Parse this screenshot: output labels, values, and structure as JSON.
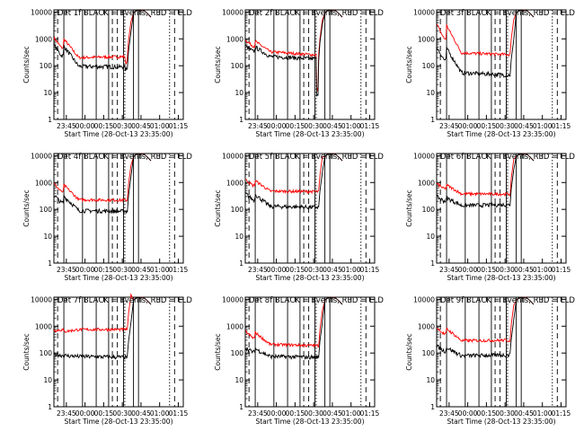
{
  "chart_data": {
    "type": "line",
    "common": {
      "ylabel": "Counts/sec",
      "xlabel_prefix": "Start Time (",
      "xlabel_date": "28-Oct-13 23:35:00",
      "xlabel_suffix": ")",
      "x_unit": "minutes since 23:35:00",
      "xlim": [
        0,
        104
      ],
      "ylim": [
        1,
        12000
      ],
      "yscale": "log",
      "yticks": [
        1,
        10,
        100,
        1000,
        10000
      ],
      "ytick_labels": [
        "1",
        "10",
        "100",
        "1000",
        "10000"
      ],
      "xticks": [
        10,
        25,
        40,
        55,
        70,
        85,
        100
      ],
      "xtick_labels": [
        "23:45",
        "00:00",
        "00:15",
        "00:30",
        "00:45",
        "01:00",
        "01:15"
      ],
      "dashed_lines": [
        3,
        47,
        51,
        97
      ],
      "solid_lines": [
        8,
        23,
        34,
        44,
        56,
        64,
        68
      ],
      "dotted_lines": [
        57,
        93
      ],
      "colors": {
        "events": "#000000",
        "lld": "#ff0000",
        "axes": "#000000"
      }
    },
    "panels": [
      {
        "title_prefix": "Det 1f",
        "title_black": "BLACK = Events,",
        "title_red": "RED = LLD",
        "black": {
          "start": 600,
          "mid": 95,
          "end": 90,
          "drop": 0.8
        },
        "red": {
          "start": 1100,
          "mid": 200,
          "end": 220,
          "drop": 0.6
        }
      },
      {
        "title_prefix": "Det 2f",
        "title_black": "BLACK = Events,",
        "title_red": "RED = LLD",
        "black": {
          "start": 550,
          "mid": 220,
          "end": 180,
          "drop": 0.05
        },
        "red": {
          "start": 900,
          "mid": 330,
          "end": 250,
          "drop": 0.05
        }
      },
      {
        "title_prefix": "Det 3f",
        "title_black": "BLACK = Events,",
        "title_red": "RED = LLD",
        "black": {
          "start": 500,
          "mid": 55,
          "end": 45,
          "drop": 0.0
        },
        "red": {
          "start": 3500,
          "mid": 300,
          "end": 260,
          "drop": 0.0
        }
      },
      {
        "title_prefix": "Det 4f",
        "title_black": "BLACK = Events,",
        "title_red": "RED = LLD",
        "black": {
          "start": 350,
          "mid": 90,
          "end": 85,
          "drop": 0.0
        },
        "red": {
          "start": 900,
          "mid": 230,
          "end": 220,
          "drop": 0.0
        }
      },
      {
        "title_prefix": "Det 5f",
        "title_black": "BLACK = Events,",
        "title_red": "RED = LLD",
        "black": {
          "start": 400,
          "mid": 130,
          "end": 120,
          "drop": 0.0
        },
        "red": {
          "start": 1300,
          "mid": 480,
          "end": 460,
          "drop": 0.0
        }
      },
      {
        "title_prefix": "Det 6f",
        "title_black": "BLACK = Events,",
        "title_red": "RED = LLD",
        "black": {
          "start": 300,
          "mid": 140,
          "end": 150,
          "drop": 0.0
        },
        "red": {
          "start": 900,
          "mid": 380,
          "end": 370,
          "drop": 0.0
        }
      },
      {
        "title_prefix": "Det 7f",
        "title_black": "BLACK = Events,",
        "title_red": "RED = LLD",
        "black": {
          "start": 90,
          "mid": 75,
          "end": 70,
          "drop": 0.0
        },
        "red": {
          "start": 700,
          "mid": 750,
          "end": 760,
          "drop": 0.0
        }
      },
      {
        "title_prefix": "Det 8f",
        "title_black": "BLACK = Events,",
        "title_red": "RED = LLD",
        "black": {
          "start": 160,
          "mid": 75,
          "end": 70,
          "drop": 0.0
        },
        "red": {
          "start": 650,
          "mid": 210,
          "end": 190,
          "drop": 0.0
        }
      },
      {
        "title_prefix": "Det 9f",
        "title_black": "BLACK = Events,",
        "title_red": "RED = LLD",
        "black": {
          "start": 180,
          "mid": 80,
          "end": 85,
          "drop": 0.0
        },
        "red": {
          "start": 900,
          "mid": 290,
          "end": 300,
          "drop": 0.0
        }
      }
    ]
  }
}
